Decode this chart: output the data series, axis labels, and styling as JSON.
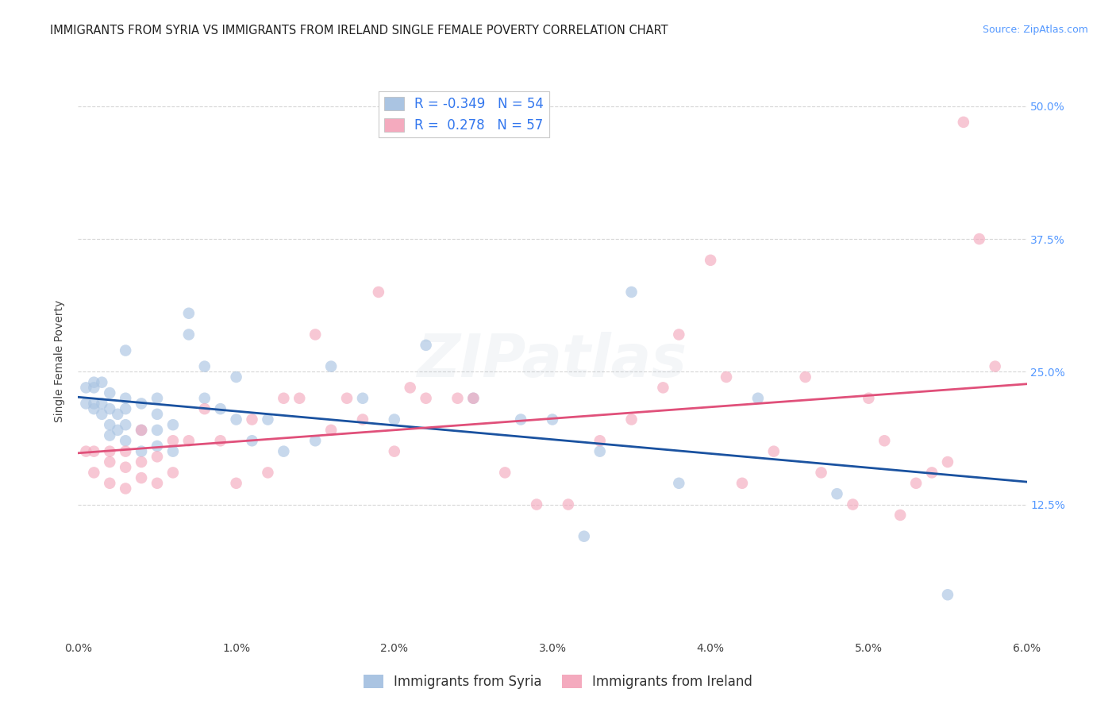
{
  "title": "IMMIGRANTS FROM SYRIA VS IMMIGRANTS FROM IRELAND SINGLE FEMALE POVERTY CORRELATION CHART",
  "source": "Source: ZipAtlas.com",
  "ylabel": "Single Female Poverty",
  "xlim": [
    0.0,
    0.06
  ],
  "ylim": [
    0.0,
    0.52
  ],
  "xtick_labels": [
    "0.0%",
    "1.0%",
    "2.0%",
    "3.0%",
    "4.0%",
    "5.0%",
    "6.0%"
  ],
  "xtick_values": [
    0.0,
    0.01,
    0.02,
    0.03,
    0.04,
    0.05,
    0.06
  ],
  "ytick_labels_right": [
    "12.5%",
    "25.0%",
    "37.5%",
    "50.0%"
  ],
  "ytick_values": [
    0.125,
    0.25,
    0.375,
    0.5
  ],
  "legend_syria_r": "-0.349",
  "legend_syria_n": "54",
  "legend_ireland_r": "0.278",
  "legend_ireland_n": "57",
  "legend_label_syria": "Immigrants from Syria",
  "legend_label_ireland": "Immigrants from Ireland",
  "color_syria": "#aac4e2",
  "color_ireland": "#f4aabe",
  "color_syria_line": "#1a52a0",
  "color_ireland_line": "#e0507a",
  "background_color": "#ffffff",
  "grid_color": "#cccccc",
  "syria_x": [
    0.0005,
    0.0005,
    0.001,
    0.001,
    0.001,
    0.001,
    0.0015,
    0.0015,
    0.0015,
    0.002,
    0.002,
    0.002,
    0.002,
    0.0025,
    0.0025,
    0.003,
    0.003,
    0.003,
    0.003,
    0.003,
    0.004,
    0.004,
    0.004,
    0.005,
    0.005,
    0.005,
    0.005,
    0.006,
    0.006,
    0.007,
    0.007,
    0.008,
    0.008,
    0.009,
    0.01,
    0.01,
    0.011,
    0.012,
    0.013,
    0.015,
    0.016,
    0.018,
    0.02,
    0.022,
    0.025,
    0.028,
    0.03,
    0.032,
    0.033,
    0.035,
    0.038,
    0.043,
    0.048,
    0.055
  ],
  "syria_y": [
    0.22,
    0.235,
    0.215,
    0.22,
    0.24,
    0.235,
    0.21,
    0.22,
    0.24,
    0.19,
    0.2,
    0.215,
    0.23,
    0.195,
    0.21,
    0.185,
    0.2,
    0.215,
    0.225,
    0.27,
    0.175,
    0.195,
    0.22,
    0.18,
    0.195,
    0.21,
    0.225,
    0.175,
    0.2,
    0.285,
    0.305,
    0.225,
    0.255,
    0.215,
    0.205,
    0.245,
    0.185,
    0.205,
    0.175,
    0.185,
    0.255,
    0.225,
    0.205,
    0.275,
    0.225,
    0.205,
    0.205,
    0.095,
    0.175,
    0.325,
    0.145,
    0.225,
    0.135,
    0.04
  ],
  "ireland_x": [
    0.0005,
    0.001,
    0.001,
    0.002,
    0.002,
    0.002,
    0.003,
    0.003,
    0.003,
    0.004,
    0.004,
    0.004,
    0.005,
    0.005,
    0.006,
    0.006,
    0.007,
    0.008,
    0.009,
    0.01,
    0.011,
    0.012,
    0.013,
    0.014,
    0.015,
    0.016,
    0.017,
    0.018,
    0.019,
    0.02,
    0.021,
    0.022,
    0.024,
    0.025,
    0.027,
    0.029,
    0.031,
    0.033,
    0.035,
    0.037,
    0.038,
    0.04,
    0.041,
    0.042,
    0.044,
    0.046,
    0.047,
    0.049,
    0.05,
    0.051,
    0.052,
    0.053,
    0.054,
    0.055,
    0.056,
    0.057,
    0.058
  ],
  "ireland_y": [
    0.175,
    0.155,
    0.175,
    0.145,
    0.165,
    0.175,
    0.14,
    0.16,
    0.175,
    0.15,
    0.165,
    0.195,
    0.145,
    0.17,
    0.155,
    0.185,
    0.185,
    0.215,
    0.185,
    0.145,
    0.205,
    0.155,
    0.225,
    0.225,
    0.285,
    0.195,
    0.225,
    0.205,
    0.325,
    0.175,
    0.235,
    0.225,
    0.225,
    0.225,
    0.155,
    0.125,
    0.125,
    0.185,
    0.205,
    0.235,
    0.285,
    0.355,
    0.245,
    0.145,
    0.175,
    0.245,
    0.155,
    0.125,
    0.225,
    0.185,
    0.115,
    0.145,
    0.155,
    0.165,
    0.485,
    0.375,
    0.255
  ],
  "title_fontsize": 10.5,
  "source_fontsize": 9,
  "axis_label_fontsize": 10,
  "tick_fontsize": 10,
  "legend_fontsize": 12,
  "watermark_text": "ZIPatlas",
  "watermark_alpha": 0.13,
  "dot_size": 110,
  "dot_alpha": 0.65
}
